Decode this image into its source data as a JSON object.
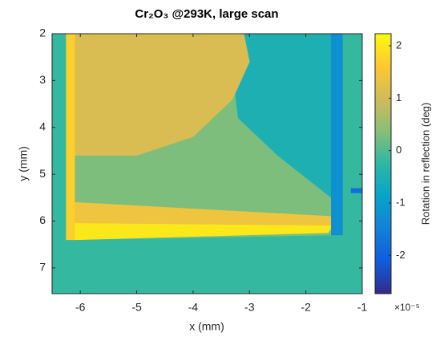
{
  "chart_data": {
    "type": "heatmap",
    "title": "Cr₂O₃ @293K, large scan",
    "x_label": "x (mm)",
    "y_label": "y (mm)",
    "xlim": [
      -6.5,
      -1
    ],
    "xticks": [
      -6,
      -5,
      -4,
      -3,
      -2,
      -1
    ],
    "ylim": [
      2,
      7.55
    ],
    "yticks": [
      2,
      3,
      4,
      5,
      6,
      7
    ],
    "y_reverse": true,
    "colorbar": {
      "label": "Rotation in reflection (deg)",
      "scale_label": "×10⁻⁵",
      "clim": [
        -2.73,
        2.23
      ],
      "ticks": [
        -2,
        -1,
        0,
        1,
        2
      ]
    },
    "colormap": [
      "#352a87",
      "#0f5cdd",
      "#1481d6",
      "#06a4ca",
      "#2eb7a4",
      "#87bf77",
      "#d1bb59",
      "#fec832",
      "#f9fb0e"
    ],
    "regions": [
      {
        "value": -0.2,
        "points": [
          [
            -6.5,
            2
          ],
          [
            -1,
            2
          ],
          [
            -1,
            7.55
          ],
          [
            -6.5,
            7.55
          ]
        ]
      },
      {
        "value": 0.3,
        "points": [
          [
            -6.1,
            2
          ],
          [
            -1.55,
            2
          ],
          [
            -1.55,
            6.3
          ],
          [
            -6.1,
            6.4
          ]
        ]
      },
      {
        "value": -0.5,
        "points": [
          [
            -3.1,
            2
          ],
          [
            -1.55,
            2
          ],
          [
            -1.55,
            5.5
          ],
          [
            -2.5,
            4.6
          ],
          [
            -3.2,
            3.8
          ],
          [
            -3.3,
            2.8
          ]
        ]
      },
      {
        "value": 1.1,
        "points": [
          [
            -6.1,
            2
          ],
          [
            -3.1,
            2
          ],
          [
            -3.0,
            2.6
          ],
          [
            -3.3,
            3.4
          ],
          [
            -4.0,
            4.2
          ],
          [
            -5.0,
            4.6
          ],
          [
            -6.1,
            4.6
          ]
        ]
      },
      {
        "value": 1.4,
        "points": [
          [
            -6.1,
            5.6
          ],
          [
            -1.55,
            5.9
          ],
          [
            -1.55,
            6.2
          ],
          [
            -6.1,
            6.4
          ]
        ]
      },
      {
        "value": 2.0,
        "points": [
          [
            -6.1,
            6.05
          ],
          [
            -1.55,
            6.1
          ],
          [
            -1.6,
            6.25
          ],
          [
            -6.1,
            6.4
          ]
        ]
      },
      {
        "value": 1.7,
        "points": [
          [
            -6.25,
            2
          ],
          [
            -6.1,
            2
          ],
          [
            -6.1,
            6.4
          ],
          [
            -6.25,
            6.4
          ]
        ]
      },
      {
        "value": -1.2,
        "points": [
          [
            -1.55,
            2
          ],
          [
            -1.35,
            2
          ],
          [
            -1.35,
            6.3
          ],
          [
            -1.55,
            6.3
          ]
        ]
      },
      {
        "value": -1.8,
        "points": [
          [
            -1.2,
            5.3
          ],
          [
            -1.0,
            5.3
          ],
          [
            -1.0,
            5.4
          ],
          [
            -1.2,
            5.4
          ]
        ]
      }
    ]
  }
}
